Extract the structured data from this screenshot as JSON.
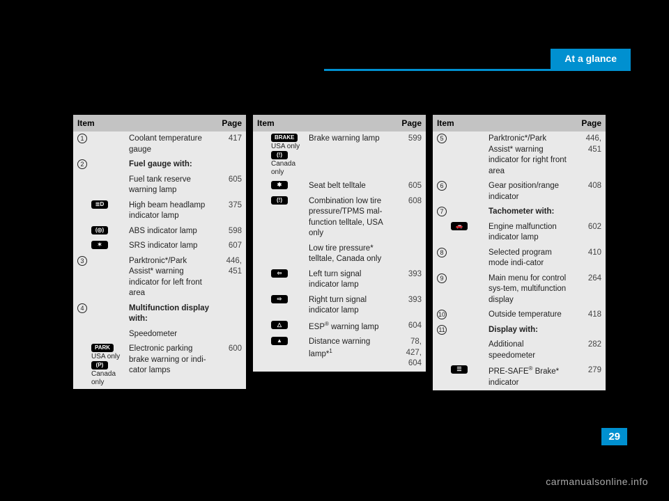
{
  "header": {
    "tab": "At a glance"
  },
  "footer": {
    "page_number": "29",
    "watermark": "carmanualsonline.info"
  },
  "table_headers": {
    "item": "Item",
    "page": "Page"
  },
  "columns": [
    {
      "rows": [
        {
          "num": "1",
          "desc": "Coolant temperature gauge",
          "page": "417"
        },
        {
          "num": "2",
          "desc": "Fuel gauge with:",
          "bold": true,
          "page": ""
        },
        {
          "desc": "Fuel tank reserve warning lamp",
          "page": "605"
        },
        {
          "sym": "≣D",
          "desc": "High beam headlamp indicator lamp",
          "page": "375"
        },
        {
          "sym": "(◎)",
          "desc": "ABS indicator lamp",
          "page": "598"
        },
        {
          "sym": "✶",
          "desc": "SRS indicator lamp",
          "page": "607"
        },
        {
          "num": "3",
          "desc": "Parktronic*/Park Assist* warning indicator for left front area",
          "page": "446,\n451"
        },
        {
          "num": "4",
          "desc": "Multifunction display with:",
          "bold": true,
          "page": ""
        },
        {
          "desc": "Speedometer",
          "page": ""
        },
        {
          "sym": "PARK",
          "sub1": "USA only",
          "sym2": "(P)",
          "sub2": "Canada only",
          "desc": "Electronic parking brake warning or indi-cator lamps",
          "page": "600"
        }
      ]
    },
    {
      "rows": [
        {
          "sym": "BRAKE",
          "sub1": "USA only",
          "sym2": "(!)",
          "sub2": "Canada only",
          "desc": "Brake warning lamp",
          "page": "599"
        },
        {
          "sym": "✱",
          "desc": "Seat belt telltale",
          "page": "605"
        },
        {
          "sym": "(!)",
          "desc": "Combination low tire pressure/TPMS mal-function telltale, USA only",
          "page": "608"
        },
        {
          "desc": "Low tire pressure* telltale, Canada only",
          "page": ""
        },
        {
          "sym": "⇦",
          "desc": "Left turn signal indicator lamp",
          "page": "393"
        },
        {
          "sym": "⇨",
          "desc": "Right turn signal indicator lamp",
          "page": "393"
        },
        {
          "sym": "△",
          "desc_html": "ESP<sup>®</sup> warning lamp",
          "page": "604"
        },
        {
          "sym": "▲",
          "desc_html": "Distance warning lamp*<sup>1</sup>",
          "page": "78,\n427,\n604"
        }
      ]
    },
    {
      "rows": [
        {
          "num": "5",
          "desc": "Parktronic*/Park Assist* warning indicator for right front area",
          "page": "446,\n451"
        },
        {
          "num": "6",
          "desc": "Gear position/range indicator",
          "page": "408"
        },
        {
          "num": "7",
          "desc": "Tachometer with:",
          "bold": true,
          "page": ""
        },
        {
          "sym": "🚗",
          "desc": "Engine malfunction indicator lamp",
          "page": "602"
        },
        {
          "num": "8",
          "desc": "Selected program mode indi-cator",
          "page": "410"
        },
        {
          "num": "9",
          "desc": "Main menu for control sys-tem, multifunction display",
          "page": "264"
        },
        {
          "num": "10",
          "desc": "Outside temperature",
          "page": "418"
        },
        {
          "num": "11",
          "desc": "Display with:",
          "bold": true,
          "page": ""
        },
        {
          "desc": "Additional speedometer",
          "page": "282"
        },
        {
          "sym": "☰",
          "desc_html": "PRE-SAFE<sup>®</sup> Brake* indicator",
          "page": "279"
        }
      ]
    }
  ]
}
